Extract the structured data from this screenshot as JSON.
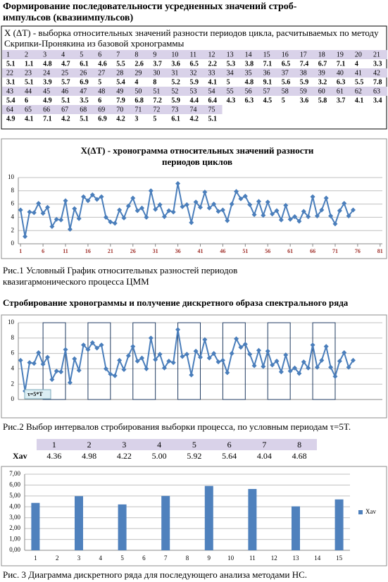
{
  "header": {
    "title": "Формирование последовательности усредненных значений строб-импульсов (квазиимпульсов)"
  },
  "sample_table": {
    "caption": "X (ΔT) - выборка относительных значений разности периодов цикла, расчитываемых по методу Скрипки-Пронякина из базовой хронограммы",
    "rows": [
      {
        "indices": [
          1,
          2,
          3,
          4,
          5,
          6,
          7,
          8,
          9,
          10,
          11,
          12,
          13,
          14,
          15,
          16,
          17,
          18,
          19,
          20,
          21
        ],
        "values": [
          5.1,
          1.1,
          4.8,
          4.7,
          6.1,
          4.6,
          5.5,
          2.6,
          3.7,
          3.6,
          6.5,
          2.2,
          5.3,
          3.8,
          7.1,
          6.5,
          7.4,
          6.7,
          7.1,
          4,
          3.3
        ]
      },
      {
        "indices": [
          22,
          23,
          24,
          25,
          26,
          27,
          28,
          29,
          30,
          31,
          32,
          33,
          34,
          35,
          36,
          37,
          38,
          39,
          40,
          41,
          42
        ],
        "values": [
          3.1,
          5.1,
          3.9,
          5.7,
          6.9,
          5,
          5.4,
          4,
          8,
          5.2,
          5.9,
          4.1,
          5,
          4.8,
          9.1,
          5.6,
          5.9,
          3.2,
          6.3,
          5.5,
          7.8
        ]
      },
      {
        "indices": [
          43,
          44,
          45,
          46,
          47,
          48,
          49,
          50,
          51,
          52,
          53,
          54,
          55,
          56,
          57,
          58,
          59,
          60,
          61,
          62,
          63
        ],
        "values": [
          5.4,
          6,
          4.9,
          5.1,
          3.5,
          6,
          7.9,
          6.8,
          7.2,
          5.9,
          4.4,
          6.4,
          4.3,
          6.3,
          4.5,
          5,
          3.6,
          5.8,
          3.7,
          4.1,
          3.4
        ]
      },
      {
        "indices": [
          64,
          65,
          66,
          67,
          68,
          69,
          70,
          71,
          72,
          73,
          74,
          75
        ],
        "values": [
          4.9,
          4.1,
          7.1,
          4.2,
          5.1,
          6.9,
          4.2,
          3,
          5,
          6.1,
          4.2,
          5.1
        ]
      }
    ]
  },
  "section_heading": "Стробирование хронограммы и получение дискретного образа спектрального ряда",
  "captions": [
    "Рис.1 Условный График относительных разностей периодов квазигармонического процесса ЦММ",
    "Рис.2 Выбор интервалов стробирования выборки процесса, по условным периодам τ=5T.",
    "Рис. 3 Диаграмма дискретного ряда для последующего анализа методами НС."
  ],
  "xav_table": {
    "row_label": "Xav",
    "indices": [
      1,
      2,
      3,
      4,
      5,
      6,
      7,
      8
    ],
    "values": [
      "4.36",
      "4.98",
      "4.22",
      "5.00",
      "5.92",
      "5.64",
      "4.04",
      "4.68"
    ]
  },
  "chart_data": [
    {
      "type": "line",
      "title": "X(ΔT) - хронограмма относительных значений разности периодов циклов",
      "x": [
        1,
        2,
        3,
        4,
        5,
        6,
        7,
        8,
        9,
        10,
        11,
        12,
        13,
        14,
        15,
        16,
        17,
        18,
        19,
        20,
        21,
        22,
        23,
        24,
        25,
        26,
        27,
        28,
        29,
        30,
        31,
        32,
        33,
        34,
        35,
        36,
        37,
        38,
        39,
        40,
        41,
        42,
        43,
        44,
        45,
        46,
        47,
        48,
        49,
        50,
        51,
        52,
        53,
        54,
        55,
        56,
        57,
        58,
        59,
        60,
        61,
        62,
        63,
        64,
        65,
        66,
        67,
        68,
        69,
        70,
        71,
        72,
        73,
        74,
        75
      ],
      "values": [
        5.1,
        1.1,
        4.8,
        4.7,
        6.1,
        4.6,
        5.5,
        2.6,
        3.7,
        3.6,
        6.5,
        2.2,
        5.3,
        3.8,
        7.1,
        6.5,
        7.4,
        6.7,
        7.1,
        4,
        3.3,
        3.1,
        5.1,
        3.9,
        5.7,
        6.9,
        5,
        5.4,
        4,
        8,
        5.2,
        5.9,
        4.1,
        5,
        4.8,
        9.1,
        5.6,
        5.9,
        3.2,
        6.3,
        5.5,
        7.8,
        5.4,
        6,
        4.9,
        5.1,
        3.5,
        6,
        7.9,
        6.8,
        7.2,
        5.9,
        4.4,
        6.4,
        4.3,
        6.3,
        4.5,
        5,
        3.6,
        5.8,
        3.7,
        4.1,
        3.4,
        4.9,
        4.1,
        7.1,
        4.2,
        5.1,
        6.9,
        4.2,
        3,
        5,
        6.1,
        4.2,
        5.1
      ],
      "color": "#4a7ebb",
      "xlim": [
        0.5,
        81.5
      ],
      "xticks": [
        1,
        6,
        11,
        16,
        21,
        26,
        31,
        36,
        41,
        46,
        51,
        56,
        61,
        66,
        71,
        76,
        81
      ],
      "ylim": [
        0,
        10
      ],
      "yticks": [
        0,
        2,
        4,
        6,
        8,
        10
      ],
      "grid": true
    },
    {
      "type": "line",
      "x": [
        1,
        2,
        3,
        4,
        5,
        6,
        7,
        8,
        9,
        10,
        11,
        12,
        13,
        14,
        15,
        16,
        17,
        18,
        19,
        20,
        21,
        22,
        23,
        24,
        25,
        26,
        27,
        28,
        29,
        30,
        31,
        32,
        33,
        34,
        35,
        36,
        37,
        38,
        39,
        40,
        41,
        42,
        43,
        44,
        45,
        46,
        47,
        48,
        49,
        50,
        51,
        52,
        53,
        54,
        55,
        56,
        57,
        58,
        59,
        60,
        61,
        62,
        63,
        64,
        65,
        66,
        67,
        68,
        69,
        70,
        71,
        72,
        73,
        74,
        75
      ],
      "values": [
        5.1,
        1.1,
        4.8,
        4.7,
        6.1,
        4.6,
        5.5,
        2.6,
        3.7,
        3.6,
        6.5,
        2.2,
        5.3,
        3.8,
        7.1,
        6.5,
        7.4,
        6.7,
        7.1,
        4,
        3.3,
        3.1,
        5.1,
        3.9,
        5.7,
        6.9,
        5,
        5.4,
        4,
        8,
        5.2,
        5.9,
        4.1,
        5,
        4.8,
        9.1,
        5.6,
        5.9,
        3.2,
        6.3,
        5.5,
        7.8,
        5.4,
        6,
        4.9,
        5.1,
        3.5,
        6,
        7.9,
        6.8,
        7.2,
        5.9,
        4.4,
        6.4,
        4.3,
        6.3,
        4.5,
        5,
        3.6,
        5.8,
        3.7,
        4.1,
        3.4,
        4.9,
        4.1,
        7.1,
        4.2,
        5.1,
        6.9,
        4.2,
        3,
        5,
        6.1,
        4.2,
        5.1
      ],
      "color": "#4a7ebb",
      "xlim": [
        0.5,
        81.5
      ],
      "ylim": [
        0,
        10
      ],
      "yticks": [
        0,
        2,
        4,
        6,
        8,
        10
      ],
      "grid": true,
      "strobes": [
        [
          6,
          11
        ],
        [
          16,
          21
        ],
        [
          26,
          31
        ],
        [
          36,
          41
        ],
        [
          46,
          51
        ],
        [
          56,
          61
        ],
        [
          66,
          71
        ]
      ],
      "annotation": "τ=5*T"
    },
    {
      "type": "bar",
      "categories": [
        1,
        2,
        3,
        4,
        5,
        6,
        7,
        8,
        9,
        10,
        11,
        12,
        13,
        14,
        15
      ],
      "series": [
        {
          "name": "Xav",
          "color": "#4f81bd",
          "values": [
            4.36,
            null,
            4.98,
            null,
            4.22,
            null,
            5.0,
            null,
            5.92,
            null,
            5.64,
            null,
            4.04,
            null,
            4.68
          ]
        }
      ],
      "ylim": [
        0,
        7
      ],
      "yticks": [
        {
          "value": 0,
          "label": "0,00"
        },
        {
          "value": 1,
          "label": "1,00"
        },
        {
          "value": 2,
          "label": "2,00"
        },
        {
          "value": 3,
          "label": "3,00"
        },
        {
          "value": 4,
          "label": "4,00"
        },
        {
          "value": 5,
          "label": "5,00"
        },
        {
          "value": 6,
          "label": "6,00"
        },
        {
          "value": 7,
          "label": "7,00"
        }
      ],
      "grid": true,
      "legend": "right"
    }
  ]
}
